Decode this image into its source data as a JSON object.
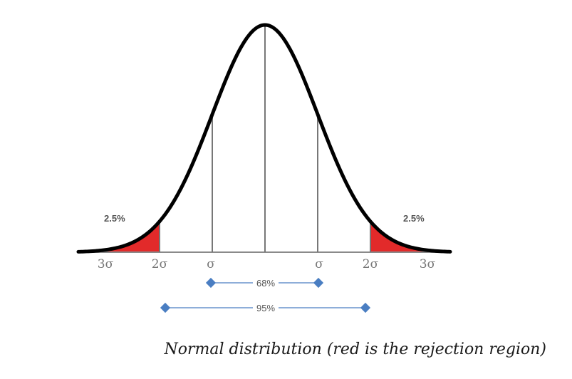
{
  "figure": {
    "tails": {
      "left_percent": "2.5%",
      "right_percent": "2.5%"
    },
    "ticks": {
      "left_3sigma": "3σ",
      "left_2sigma": "2σ",
      "left_1sigma": "σ",
      "right_1sigma": "σ",
      "right_2sigma": "2σ",
      "right_3sigma": "3σ"
    },
    "bands": {
      "inner": "68%",
      "outer": "95%"
    },
    "colors": {
      "curve": "#000000",
      "rejection": "#e01818",
      "bracket": "#4a7ec2",
      "axis": "#8a8a8a"
    }
  },
  "caption": "Normal distribution (red is the rejection region)"
}
